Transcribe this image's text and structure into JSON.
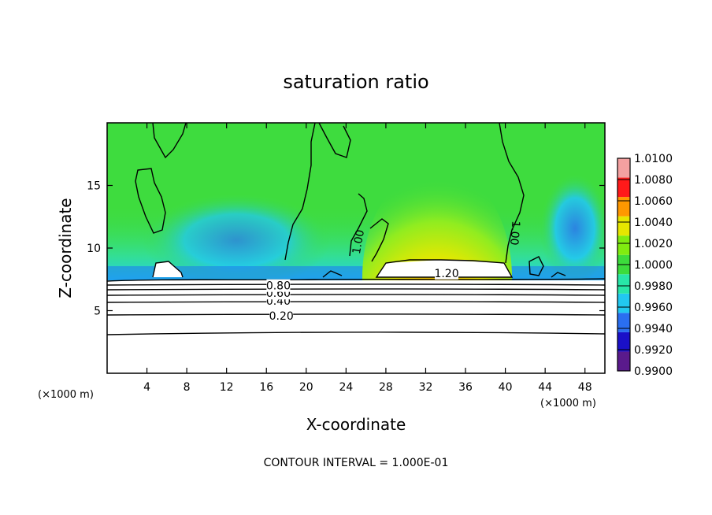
{
  "chart_data": {
    "type": "heatmap",
    "title": "saturation ratio",
    "xlabel": "X-coordinate",
    "ylabel": "Z-coordinate",
    "x_unit_label": "(×1000 m)",
    "x_unit_label_right": "(×1000 m)",
    "xlim": [
      0,
      50
    ],
    "ylim": [
      0,
      20
    ],
    "xticks": [
      4,
      8,
      12,
      16,
      20,
      24,
      28,
      32,
      36,
      40,
      44,
      48
    ],
    "yticks": [
      5,
      10,
      15
    ],
    "colorbar": {
      "levels": [
        "0.9900",
        "0.9920",
        "0.9940",
        "0.9960",
        "0.9980",
        "1.0000",
        "1.0020",
        "1.0040",
        "1.0060",
        "1.0080",
        "1.0100"
      ],
      "colors": [
        "#5a1a8c",
        "#1a10c8",
        "#2a6ef0",
        "#22c8f0",
        "#28e6a8",
        "#3cdc3c",
        "#80ec10",
        "#e6e600",
        "#ff9800",
        "#ff1a1a",
        "#f4a0a0"
      ]
    },
    "background_color": "#3edc3e",
    "contour_labels": [
      {
        "text": "0.20",
        "x": 17.5,
        "y": 4.6
      },
      {
        "text": "0.40",
        "x": 17.2,
        "y": 5.8
      },
      {
        "text": "0.60",
        "x": 17.2,
        "y": 6.4
      },
      {
        "text": "0.80",
        "x": 17.2,
        "y": 7.0
      },
      {
        "text": "1.00",
        "x": 25.2,
        "y": 10.5
      },
      {
        "text": "1.00",
        "x": 41.0,
        "y": 11.2
      },
      {
        "text": "1.20",
        "x": 34.1,
        "y": 8.0
      }
    ],
    "footnote": "CONTOUR INTERVAL = 1.000E-01"
  }
}
